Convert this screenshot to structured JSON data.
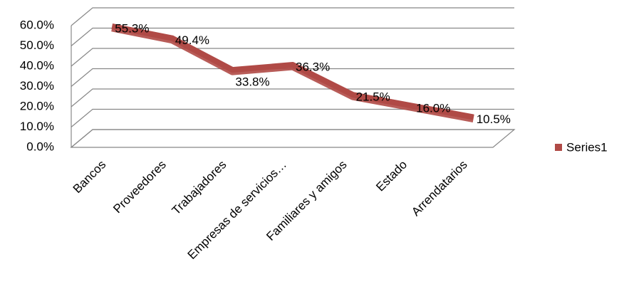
{
  "chart_data": {
    "type": "line3d",
    "categories": [
      "Bancos",
      "Proveedores",
      "Trabajadores",
      "Empresas de servicios…",
      "Familiares y amigos",
      "Estado",
      "Arrendatarios"
    ],
    "series": [
      {
        "name": "Series1",
        "color": "#b04a46",
        "values": [
          55.3,
          49.4,
          33.8,
          36.3,
          21.5,
          16.0,
          10.5
        ],
        "value_labels": [
          "55.3%",
          "49.4%",
          "33.8%",
          "36.3%",
          "21.5%",
          "16.0%",
          "10.5%"
        ]
      }
    ],
    "ylim": [
      0,
      60
    ],
    "yticks": [
      {
        "value": 0,
        "label": "0.0%"
      },
      {
        "value": 10,
        "label": "10.0%"
      },
      {
        "value": 20,
        "label": "20.0%"
      },
      {
        "value": 30,
        "label": "30.0%"
      },
      {
        "value": 40,
        "label": "40.0%"
      },
      {
        "value": 50,
        "label": "50.0%"
      },
      {
        "value": 60,
        "label": "60.0%"
      }
    ],
    "grid": true,
    "legend": "right"
  }
}
